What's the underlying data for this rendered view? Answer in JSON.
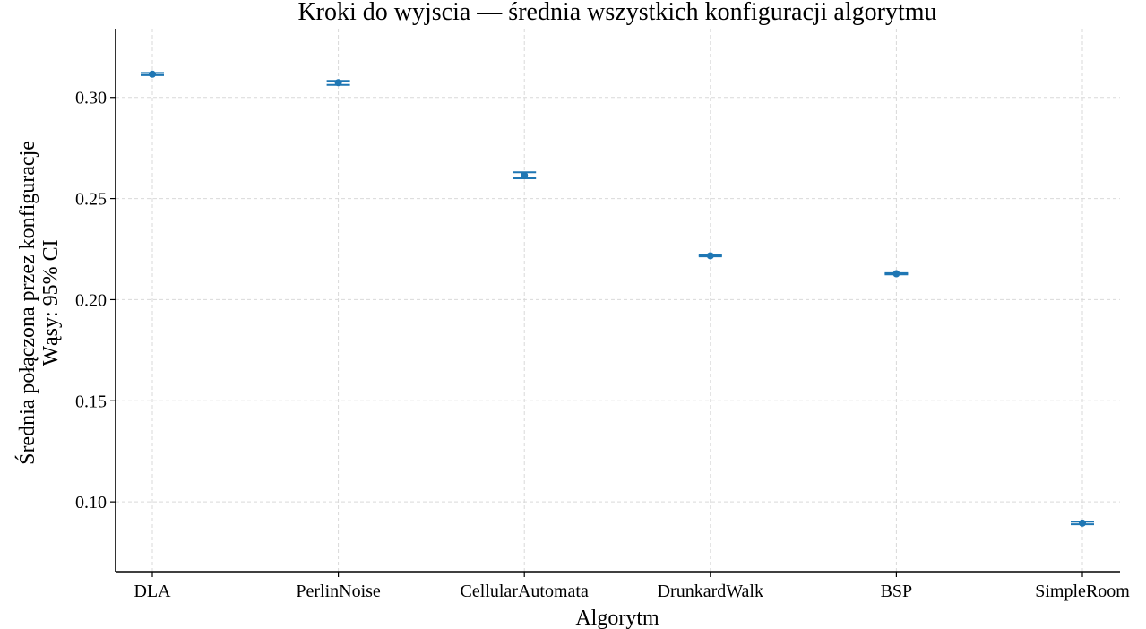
{
  "chart_data": {
    "type": "scatter",
    "title": "Kroki do wyjscia — średnia wszystkich konfiguracji algorytmu",
    "xlabel": "Algorytm",
    "ylabel_lines": [
      "Średnia połączona przez konfiguracje",
      "Wąsy: 95% CI"
    ],
    "categories": [
      "DLA",
      "PerlinNoise",
      "CellularAutomata",
      "DrunkardWalk",
      "BSP",
      "SimpleRoom"
    ],
    "series": [
      {
        "values": [
          0.3115,
          0.3073,
          0.2615,
          0.2217,
          0.2128,
          0.0895
        ],
        "ci_low": [
          0.311,
          0.3062,
          0.26,
          0.2214,
          0.2125,
          0.0889
        ],
        "ci_high": [
          0.3121,
          0.3082,
          0.263,
          0.222,
          0.2131,
          0.0902
        ]
      }
    ],
    "yticks": [
      0.1,
      0.15,
      0.2,
      0.25,
      0.3
    ],
    "ytick_labels": [
      "0.10",
      "0.15",
      "0.20",
      "0.25",
      "0.30"
    ],
    "ylim": [
      0.0655,
      0.334
    ],
    "grid": true,
    "color": "#1f77b4"
  }
}
